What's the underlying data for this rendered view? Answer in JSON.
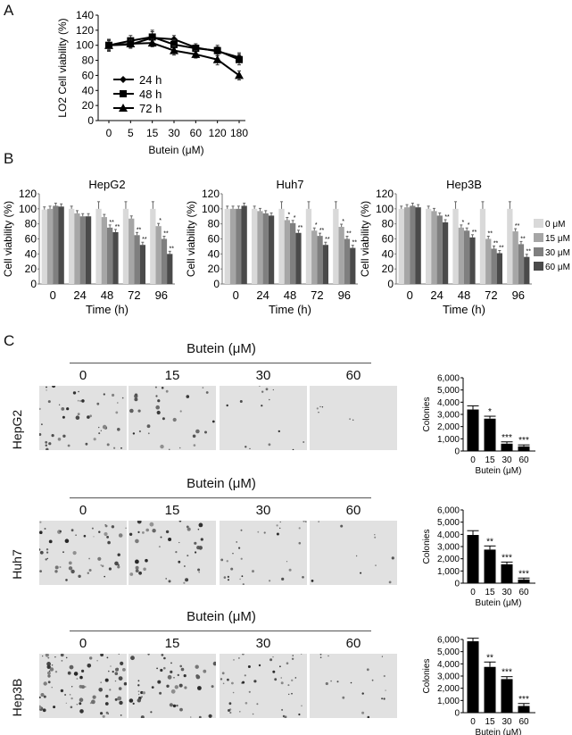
{
  "panels": {
    "A": {
      "letter": "A"
    },
    "B": {
      "letter": "B"
    },
    "C": {
      "letter": "C"
    }
  },
  "chart_data": [
    {
      "id": "A",
      "type": "line",
      "title": "",
      "xlabel": "Butein (μM)",
      "ylabel": "LO2 Cell viability (%)",
      "categories": [
        "0",
        "5",
        "15",
        "30",
        "60",
        "120",
        "180"
      ],
      "ylim": [
        0,
        140
      ],
      "yticks": [
        0,
        20,
        40,
        60,
        80,
        100,
        120,
        140
      ],
      "grid": false,
      "legend_position": "lower-left inside",
      "series": [
        {
          "name": "24 h",
          "marker": "diamond",
          "values": [
            100,
            101,
            110,
            108,
            97,
            92,
            84
          ],
          "errors": [
            7,
            5,
            8,
            5,
            5,
            6,
            6
          ]
        },
        {
          "name": "48 h",
          "marker": "square",
          "values": [
            100,
            106,
            111,
            101,
            96,
            93,
            81
          ],
          "errors": [
            8,
            7,
            9,
            6,
            6,
            7,
            7
          ]
        },
        {
          "name": "72 h",
          "marker": "triangle",
          "values": [
            100,
            102,
            103,
            93,
            88,
            81,
            60
          ],
          "errors": [
            6,
            5,
            5,
            6,
            5,
            7,
            6
          ]
        }
      ]
    },
    {
      "id": "B-HepG2",
      "type": "bar",
      "title": "HepG2",
      "xlabel": "Time (h)",
      "ylabel": "Cell viability (%)",
      "categories": [
        "0",
        "24",
        "48",
        "72",
        "96"
      ],
      "ylim": [
        0,
        120
      ],
      "yticks": [
        0,
        20,
        40,
        60,
        80,
        100,
        120
      ],
      "series": [
        {
          "name": "0 μM",
          "values": [
            99,
            100,
            100,
            100,
            100
          ],
          "sig": [
            "",
            "",
            "",
            "",
            ""
          ]
        },
        {
          "name": "15 μM",
          "values": [
            100,
            94,
            89,
            87,
            77
          ],
          "sig": [
            "",
            "",
            "",
            "",
            "*"
          ]
        },
        {
          "name": "30 μM",
          "values": [
            104,
            90,
            75,
            65,
            60
          ],
          "sig": [
            "",
            "",
            "**",
            "**",
            "**"
          ]
        },
        {
          "name": "60 μM",
          "values": [
            103,
            90,
            69,
            52,
            40
          ],
          "sig": [
            "",
            "",
            "**",
            "**",
            "**"
          ]
        }
      ]
    },
    {
      "id": "B-Huh7",
      "type": "bar",
      "title": "Huh7",
      "xlabel": "Time (h)",
      "ylabel": "Cell viability (%)",
      "categories": [
        "0",
        "24",
        "48",
        "72",
        "96"
      ],
      "ylim": [
        0,
        120
      ],
      "yticks": [
        0,
        20,
        40,
        60,
        80,
        100,
        120
      ],
      "series": [
        {
          "name": "0 μM",
          "values": [
            100,
            100,
            100,
            100,
            100
          ],
          "sig": [
            "",
            "",
            "",
            "",
            ""
          ]
        },
        {
          "name": "15 μM",
          "values": [
            100,
            97,
            85,
            71,
            76
          ],
          "sig": [
            "",
            "",
            "*",
            "*",
            "*"
          ]
        },
        {
          "name": "30 μM",
          "values": [
            100,
            94,
            81,
            64,
            60
          ],
          "sig": [
            "",
            "",
            "*",
            "**",
            "**"
          ]
        },
        {
          "name": "60 μM",
          "values": [
            104,
            91,
            68,
            52,
            48
          ],
          "sig": [
            "",
            "",
            "**",
            "**",
            "**"
          ]
        }
      ]
    },
    {
      "id": "B-Hep3B",
      "type": "bar",
      "title": "Hep3B",
      "xlabel": "Time (h)",
      "ylabel": "Cell viability (%)",
      "categories": [
        "0",
        "24",
        "48",
        "72",
        "96"
      ],
      "ylim": [
        0,
        120
      ],
      "yticks": [
        0,
        20,
        40,
        60,
        80,
        100,
        120
      ],
      "legend_position": "right",
      "series": [
        {
          "name": "0 μM",
          "values": [
            100,
            100,
            100,
            100,
            100
          ],
          "sig": [
            "",
            "",
            "",
            "",
            ""
          ]
        },
        {
          "name": "15 μM",
          "values": [
            102,
            97,
            75,
            60,
            70
          ],
          "sig": [
            "",
            "",
            "*",
            "**",
            "**"
          ]
        },
        {
          "name": "30 μM",
          "values": [
            104,
            91,
            71,
            47,
            53
          ],
          "sig": [
            "",
            "",
            "*",
            "**",
            "**"
          ]
        },
        {
          "name": "60 μM",
          "values": [
            102,
            82,
            62,
            41,
            36
          ],
          "sig": [
            "",
            "**",
            "**",
            "**",
            "**"
          ]
        }
      ]
    },
    {
      "id": "C-HepG2",
      "type": "bar",
      "title": "",
      "xlabel": "Butein (μM)",
      "ylabel": "Colonies",
      "categories": [
        "0",
        "15",
        "30",
        "60"
      ],
      "ylim": [
        0,
        6000
      ],
      "yticks": [
        0,
        1000,
        2000,
        3000,
        4000,
        5000,
        6000
      ],
      "ytick_labels": [
        "0",
        "1,000",
        "2,000",
        "3,000",
        "4,000",
        "5,000",
        "6,000"
      ],
      "values": [
        3400,
        2650,
        600,
        380
      ],
      "errors": [
        300,
        200,
        150,
        120
      ],
      "sig": [
        "",
        "*",
        "***",
        "***"
      ]
    },
    {
      "id": "C-Huh7",
      "type": "bar",
      "title": "",
      "xlabel": "Butein (μM)",
      "ylabel": "Colonies",
      "categories": [
        "0",
        "15",
        "30",
        "60"
      ],
      "ylim": [
        0,
        6000
      ],
      "yticks": [
        0,
        1000,
        2000,
        3000,
        4000,
        5000,
        6000
      ],
      "ytick_labels": [
        "0",
        "1,000",
        "2,000",
        "3,000",
        "4,000",
        "5,000",
        "6,000"
      ],
      "values": [
        3950,
        2750,
        1550,
        300
      ],
      "errors": [
        350,
        300,
        180,
        120
      ],
      "sig": [
        "",
        "**",
        "***",
        "***"
      ]
    },
    {
      "id": "C-Hep3B",
      "type": "bar",
      "title": "",
      "xlabel": "Butein (μM)",
      "ylabel": "Colonies",
      "categories": [
        "0",
        "15",
        "30",
        "60"
      ],
      "ylim": [
        0,
        6000
      ],
      "yticks": [
        0,
        1000,
        2000,
        3000,
        4000,
        5000,
        6000
      ],
      "ytick_labels": [
        "0",
        "1,000",
        "2,000",
        "3,000",
        "4,000",
        "5,000",
        "6,000"
      ],
      "values": [
        5850,
        3750,
        2750,
        550
      ],
      "errors": [
        250,
        400,
        200,
        200
      ],
      "sig": [
        "",
        "**",
        "***",
        "***"
      ]
    }
  ],
  "colony_images": {
    "header": "Butein (μM)",
    "doses": [
      "0",
      "15",
      "30",
      "60"
    ],
    "rows": [
      {
        "cell_line": "HepG2"
      },
      {
        "cell_line": "Huh7"
      },
      {
        "cell_line": "Hep3B"
      }
    ]
  },
  "colors": {
    "bar_0": "#d9d9d9",
    "bar_15": "#a6a6a6",
    "bar_30": "#7f7f7f",
    "bar_60": "#4a4a4a",
    "colony_bar": "#000000",
    "line": "#000000"
  }
}
